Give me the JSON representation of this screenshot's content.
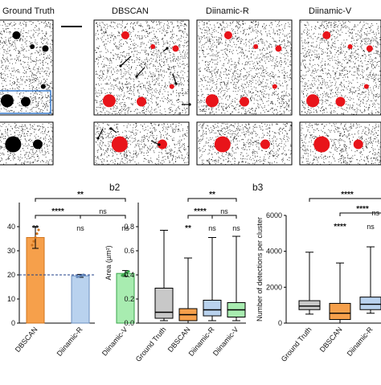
{
  "figure": {
    "top_panels": [
      {
        "title": "Ground Truth",
        "dot_color": "#000000"
      },
      {
        "title": "DBSCAN",
        "dot_color": "#e8141a"
      },
      {
        "title": "Diinamic-R",
        "dot_color": "#e8141a"
      },
      {
        "title": "Diinamic-V",
        "dot_color": "#e8141a"
      }
    ],
    "sublabels": {
      "b2": "b2",
      "b3": "b3"
    },
    "colors": {
      "ground_truth": "#c8c8c8",
      "dbscan": "#f6a04b",
      "diinamic_r": "#b9d2ee",
      "diinamic_v": "#a8ecb0",
      "inset_box": "#3b7fd0"
    }
  },
  "chart_data": [
    {
      "type": "bar",
      "categories": [
        "DBSCAN",
        "Diinamic-R",
        "Diinamic-V"
      ],
      "values": [
        35.5,
        19.6,
        20.6
      ],
      "errors": [
        4.5,
        0.6,
        1.2
      ],
      "reference_line": 20,
      "ylim": [
        0,
        50
      ],
      "yticks": [
        0,
        10,
        20,
        30,
        40
      ],
      "ytick_labels": [
        "0",
        "10",
        "20",
        "30",
        "40"
      ],
      "significance": [
        {
          "from": 0,
          "to": 2,
          "label": "**"
        },
        {
          "from": 0,
          "to": 1,
          "label": "****"
        },
        {
          "from": 1,
          "to": 2,
          "label": "ns"
        },
        {
          "at": 0,
          "label": "**"
        },
        {
          "at": 1,
          "label": "ns"
        },
        {
          "at": 2,
          "label": "ns"
        }
      ]
    },
    {
      "type": "box",
      "categories": [
        "Ground Truth",
        "DBSCAN",
        "Diinamic-R",
        "Diinamic-V"
      ],
      "ylabel": "Area (µm²)",
      "ylim": [
        0,
        1.0
      ],
      "yticks": [
        0.0,
        0.2,
        0.4,
        0.6,
        0.8
      ],
      "ytick_labels": [
        "0.0",
        "0.2",
        "0.4",
        "0.6",
        "0.8"
      ],
      "boxes": [
        {
          "min": 0.02,
          "q1": 0.04,
          "median": 0.09,
          "q3": 0.29,
          "max": 0.77
        },
        {
          "min": 0.0,
          "q1": 0.02,
          "median": 0.07,
          "q3": 0.12,
          "max": 0.54
        },
        {
          "min": 0.02,
          "q1": 0.06,
          "median": 0.11,
          "q3": 0.19,
          "max": 0.71
        },
        {
          "min": 0.02,
          "q1": 0.05,
          "median": 0.11,
          "q3": 0.17,
          "max": 0.72
        }
      ],
      "significance": [
        {
          "from": 1,
          "to": 3,
          "label": "**"
        },
        {
          "from": 1,
          "to": 2,
          "label": "****"
        },
        {
          "from": 2,
          "to": 3,
          "label": "ns"
        },
        {
          "at": 1,
          "label": "**"
        },
        {
          "at": 2,
          "label": "ns"
        },
        {
          "at": 3,
          "label": "ns"
        }
      ]
    },
    {
      "type": "box",
      "categories": [
        "Ground Truth",
        "DBSCAN",
        "Diinamic-R"
      ],
      "ylabel": "Number of detections per cluster",
      "ylim": [
        0,
        6000
      ],
      "yticks": [
        0,
        2000,
        4000,
        6000
      ],
      "ytick_labels": [
        "0",
        "2000",
        "4000",
        "6000"
      ],
      "boxes": [
        {
          "min": 500,
          "q1": 750,
          "median": 950,
          "q3": 1250,
          "max": 3950
        },
        {
          "min": 0,
          "q1": 200,
          "median": 550,
          "q3": 1100,
          "max": 3350
        },
        {
          "min": 550,
          "q1": 750,
          "median": 1050,
          "q3": 1450,
          "max": 4250
        }
      ],
      "significance": [
        {
          "from": 0,
          "to": 2,
          "label": "****"
        },
        {
          "from": 1,
          "to": 2,
          "label": "****"
        },
        {
          "at": 1,
          "label": "****"
        },
        {
          "at": 2,
          "label": "ns"
        },
        {
          "right": true,
          "label": "ns"
        }
      ]
    }
  ]
}
